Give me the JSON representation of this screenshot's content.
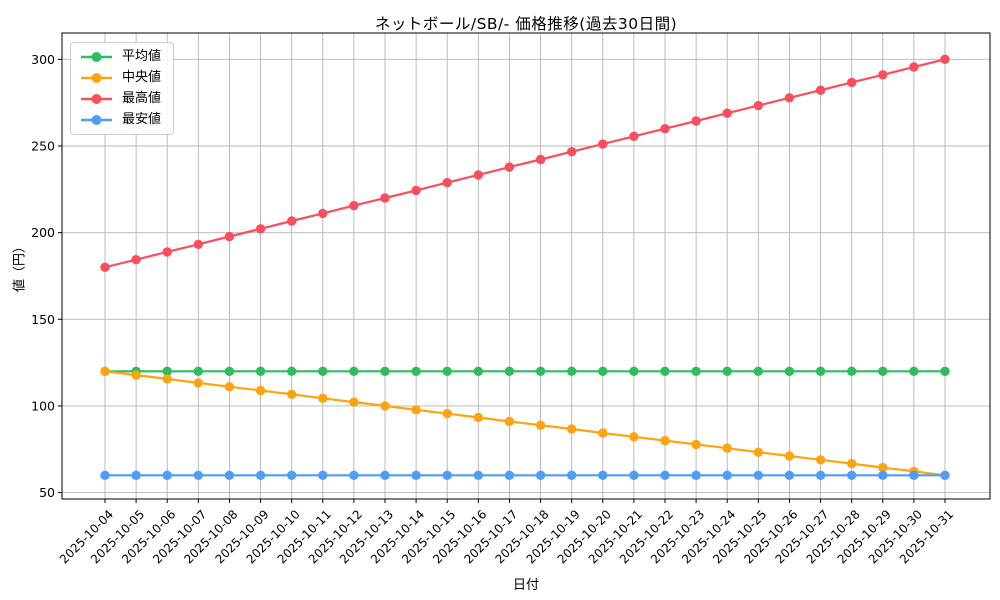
{
  "figure": {
    "background_color": "#ffffff",
    "grid_color": "#b4b4b4",
    "spine_color": "#000000",
    "legend_border_color": "#cccccc"
  },
  "chart_data": {
    "type": "line",
    "title": "ネットボール/SB/- 価格推移(過去30日間)",
    "xlabel": "日付",
    "ylabel": "値（円）",
    "x": [
      "2025-10-04",
      "2025-10-05",
      "2025-10-06",
      "2025-10-07",
      "2025-10-08",
      "2025-10-09",
      "2025-10-10",
      "2025-10-11",
      "2025-10-12",
      "2025-10-13",
      "2025-10-14",
      "2025-10-15",
      "2025-10-16",
      "2025-10-17",
      "2025-10-18",
      "2025-10-19",
      "2025-10-20",
      "2025-10-21",
      "2025-10-22",
      "2025-10-23",
      "2025-10-24",
      "2025-10-25",
      "2025-10-26",
      "2025-10-27",
      "2025-10-28",
      "2025-10-29",
      "2025-10-30",
      "2025-10-31"
    ],
    "series": [
      {
        "name": "平均値",
        "key": "average",
        "color": "#2ebc5e",
        "values": [
          120,
          120,
          120,
          120,
          120,
          120,
          120,
          120,
          120,
          120,
          120,
          120,
          120,
          120,
          120,
          120,
          120,
          120,
          120,
          120,
          120,
          120,
          120,
          120,
          120,
          120,
          120,
          120
        ]
      },
      {
        "name": "中央値",
        "key": "median",
        "color": "#ffa410",
        "values": [
          120.0,
          117.8,
          115.6,
          113.3,
          111.1,
          108.9,
          106.7,
          104.4,
          102.2,
          100.0,
          97.8,
          95.6,
          93.3,
          91.1,
          88.9,
          86.7,
          84.4,
          82.2,
          80.0,
          77.8,
          75.6,
          73.3,
          71.1,
          68.9,
          66.7,
          64.4,
          62.2,
          60.0
        ]
      },
      {
        "name": "最高値",
        "key": "highest",
        "color": "#f94f5c",
        "values": [
          180.0,
          184.4,
          188.9,
          193.3,
          197.8,
          202.2,
          206.7,
          211.1,
          215.6,
          220.0,
          224.4,
          228.9,
          233.3,
          237.8,
          242.2,
          246.7,
          251.1,
          255.6,
          260.0,
          264.4,
          268.9,
          273.3,
          277.8,
          282.2,
          286.7,
          291.1,
          295.6,
          300.0
        ]
      },
      {
        "name": "最安値",
        "key": "lowest",
        "color": "#4f9cf9",
        "values": [
          60,
          60,
          60,
          60,
          60,
          60,
          60,
          60,
          60,
          60,
          60,
          60,
          60,
          60,
          60,
          60,
          60,
          60,
          60,
          60,
          60,
          60,
          60,
          60,
          60,
          60,
          60,
          60
        ]
      }
    ],
    "yticks": [
      50,
      100,
      150,
      200,
      250,
      300
    ],
    "ylim": [
      46.3,
      315.2
    ],
    "grid": true,
    "legend_position": "upper left"
  }
}
